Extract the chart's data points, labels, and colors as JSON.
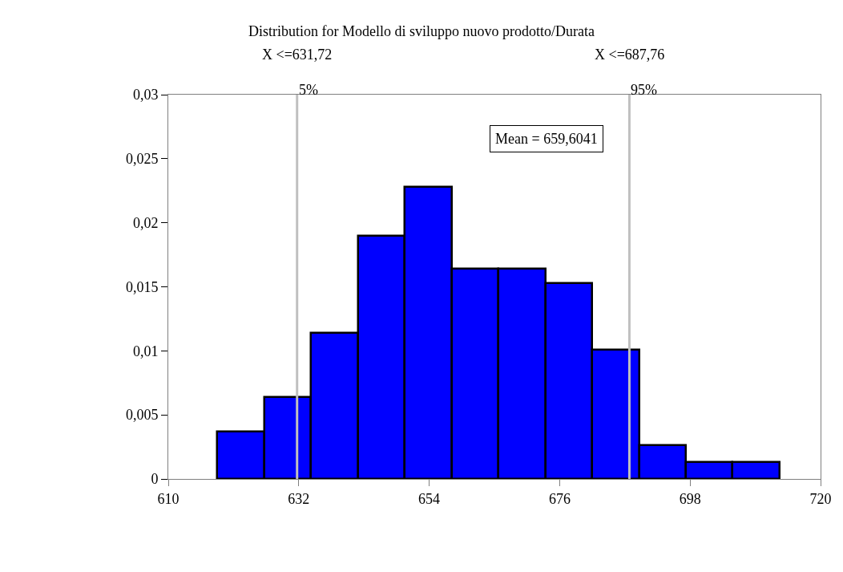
{
  "chart_data": {
    "type": "histogram",
    "title": "Distribution for Modello di sviluppo nuovo prodotto/Durata",
    "bins": [
      618.3,
      626.2,
      634.1,
      642.0,
      649.9,
      657.8,
      665.7,
      673.6,
      681.5,
      689.4,
      697.3,
      705.2,
      713.1
    ],
    "values": [
      0.0037,
      0.0064,
      0.0114,
      0.019,
      0.0228,
      0.0164,
      0.0164,
      0.0153,
      0.0101,
      0.0026,
      0.0013,
      0.0013
    ],
    "color": "#0000ff",
    "xlim": [
      610,
      720
    ],
    "xticks": [
      610,
      632,
      654,
      676,
      698,
      720
    ],
    "ylim": [
      0,
      0.03
    ],
    "yticks": [
      0,
      {
        "value": 0.005,
        "label": "0,005"
      },
      {
        "value": 0.01,
        "label": "0,01"
      },
      {
        "value": 0.015,
        "label": "0,015"
      },
      {
        "value": 0.02,
        "label": "0,02"
      },
      {
        "value": 0.025,
        "label": "0,025"
      },
      {
        "value": 0.03,
        "label": "0,03"
      }
    ],
    "ref_lines": [
      {
        "axis": "x",
        "value": 631.72,
        "label": "X <=631,72",
        "color": "#c0c0c0"
      },
      {
        "axis": "x",
        "value": 687.76,
        "label": "X <=687,76",
        "color": "#c0c0c0"
      }
    ],
    "annotations": [
      {
        "text": "5%",
        "x": 631.72,
        "y": 0.03
      },
      {
        "text": "95%",
        "x": 687.76,
        "y": 0.03
      },
      "Mean = 659,6041"
    ]
  }
}
